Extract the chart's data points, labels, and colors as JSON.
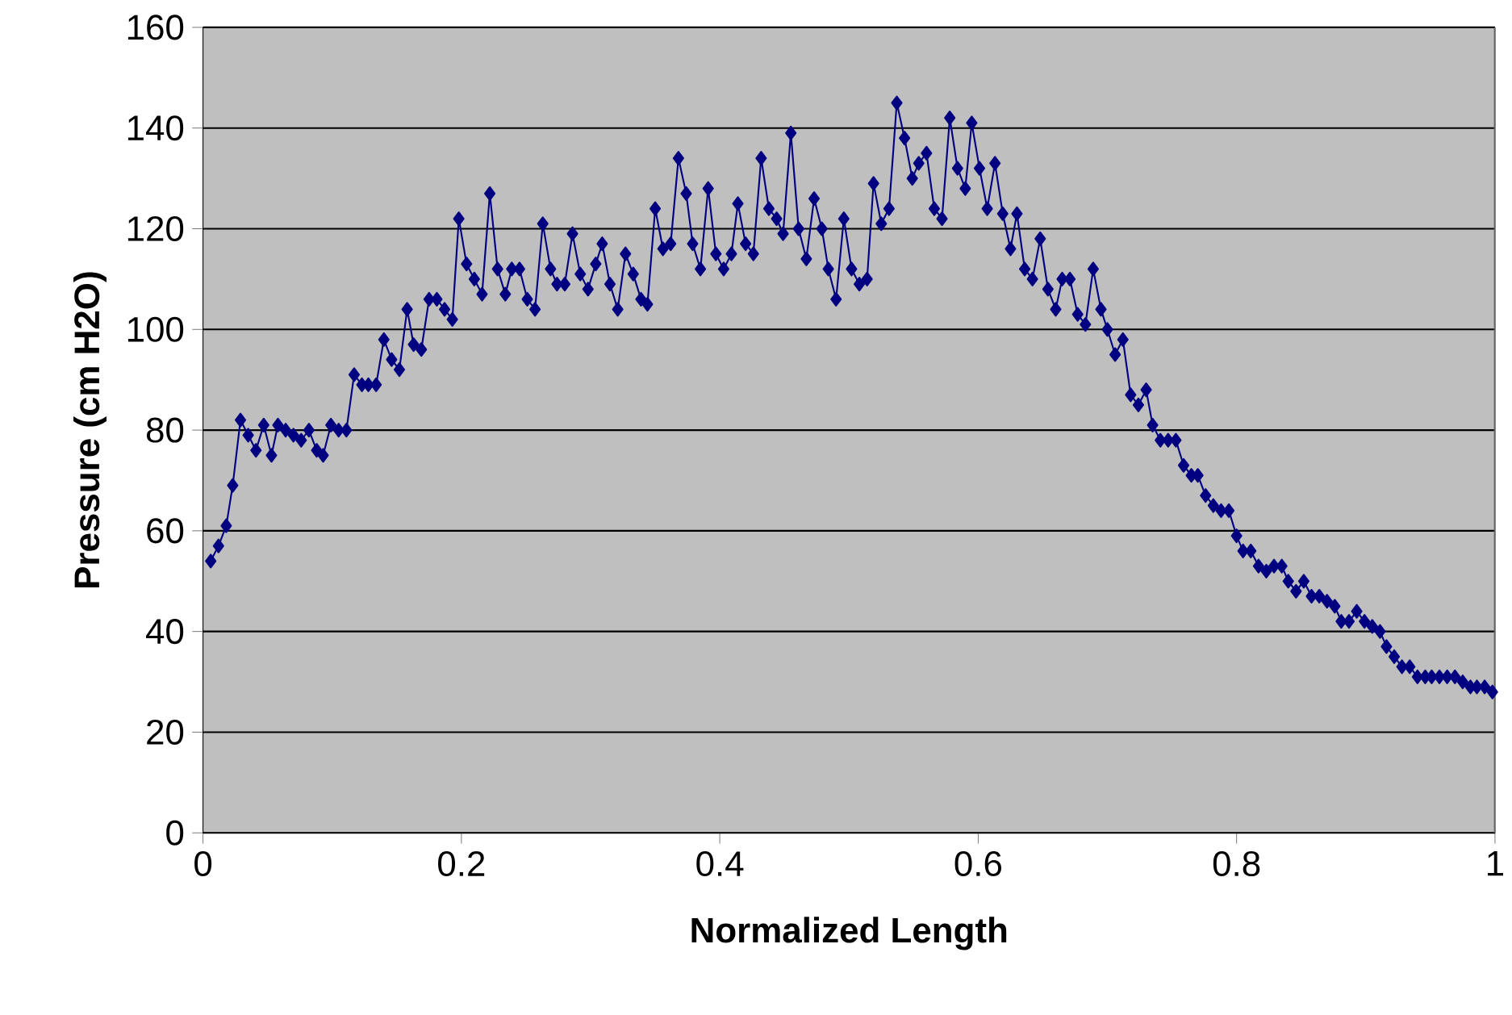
{
  "chart_data": {
    "type": "line",
    "xlabel": "Normalized Length",
    "ylabel": "Pressure (cm H2O)",
    "xlim": [
      0,
      1
    ],
    "ylim": [
      0,
      160
    ],
    "xticks": [
      0,
      0.2,
      0.4,
      0.6,
      0.8,
      1
    ],
    "yticks": [
      0,
      20,
      40,
      60,
      80,
      100,
      120,
      140,
      160
    ],
    "grid": "y",
    "marker": "diamond",
    "line_style": "solid",
    "series": [
      {
        "color": "#000080",
        "x": [
          0.006,
          0.012,
          0.018,
          0.023,
          0.029,
          0.035,
          0.041,
          0.047,
          0.053,
          0.058,
          0.064,
          0.07,
          0.076,
          0.082,
          0.088,
          0.093,
          0.099,
          0.105,
          0.111,
          0.117,
          0.123,
          0.128,
          0.134,
          0.14,
          0.146,
          0.152,
          0.158,
          0.163,
          0.169,
          0.175,
          0.181,
          0.187,
          0.193,
          0.198,
          0.204,
          0.21,
          0.216,
          0.222,
          0.228,
          0.234,
          0.239,
          0.245,
          0.251,
          0.257,
          0.263,
          0.269,
          0.274,
          0.28,
          0.286,
          0.292,
          0.298,
          0.304,
          0.309,
          0.315,
          0.321,
          0.327,
          0.333,
          0.339,
          0.344,
          0.35,
          0.356,
          0.362,
          0.368,
          0.374,
          0.379,
          0.385,
          0.391,
          0.397,
          0.403,
          0.409,
          0.414,
          0.42,
          0.426,
          0.432,
          0.438,
          0.444,
          0.449,
          0.455,
          0.461,
          0.467,
          0.473,
          0.479,
          0.484,
          0.49,
          0.496,
          0.502,
          0.508,
          0.514,
          0.519,
          0.525,
          0.531,
          0.537,
          0.543,
          0.549,
          0.554,
          0.56,
          0.566,
          0.572,
          0.578,
          0.584,
          0.59,
          0.595,
          0.601,
          0.607,
          0.613,
          0.619,
          0.625,
          0.63,
          0.636,
          0.642,
          0.648,
          0.654,
          0.66,
          0.665,
          0.671,
          0.677,
          0.683,
          0.689,
          0.695,
          0.7,
          0.706,
          0.712,
          0.718,
          0.724,
          0.73,
          0.735,
          0.741,
          0.747,
          0.753,
          0.759,
          0.765,
          0.77,
          0.776,
          0.782,
          0.788,
          0.794,
          0.8,
          0.805,
          0.811,
          0.817,
          0.823,
          0.829,
          0.835,
          0.84,
          0.846,
          0.852,
          0.858,
          0.864,
          0.87,
          0.876,
          0.881,
          0.887,
          0.893,
          0.899,
          0.905,
          0.911,
          0.916,
          0.922,
          0.928,
          0.934,
          0.94,
          0.946,
          0.951,
          0.957,
          0.963,
          0.969,
          0.975,
          0.981,
          0.986,
          0.992,
          0.998
        ],
        "values": [
          54,
          57,
          61,
          69,
          82,
          79,
          76,
          81,
          75,
          81,
          80,
          79,
          78,
          80,
          76,
          75,
          81,
          80,
          80,
          91,
          89,
          89,
          89,
          98,
          94,
          92,
          104,
          97,
          96,
          106,
          106,
          104,
          102,
          122,
          113,
          110,
          107,
          127,
          112,
          107,
          112,
          112,
          106,
          104,
          121,
          112,
          109,
          109,
          119,
          111,
          108,
          113,
          117,
          109,
          104,
          115,
          111,
          106,
          105,
          124,
          116,
          117,
          134,
          127,
          117,
          112,
          128,
          115,
          112,
          115,
          125,
          117,
          115,
          134,
          124,
          122,
          119,
          139,
          120,
          114,
          126,
          120,
          112,
          106,
          122,
          112,
          109,
          110,
          129,
          121,
          124,
          145,
          138,
          130,
          133,
          135,
          124,
          122,
          142,
          132,
          128,
          141,
          132,
          124,
          133,
          123,
          116,
          123,
          112,
          110,
          118,
          108,
          104,
          110,
          110,
          103,
          101,
          112,
          104,
          100,
          95,
          98,
          87,
          85,
          88,
          81,
          78,
          78,
          78,
          73,
          71,
          71,
          67,
          65,
          64,
          64,
          59,
          56,
          56,
          53,
          52,
          53,
          53,
          50,
          48,
          50,
          47,
          47,
          46,
          45,
          42,
          42,
          44,
          42,
          41,
          40,
          37,
          35,
          33,
          33,
          31,
          31,
          31,
          31,
          31,
          31,
          30,
          29,
          29,
          29,
          28
        ]
      }
    ]
  }
}
